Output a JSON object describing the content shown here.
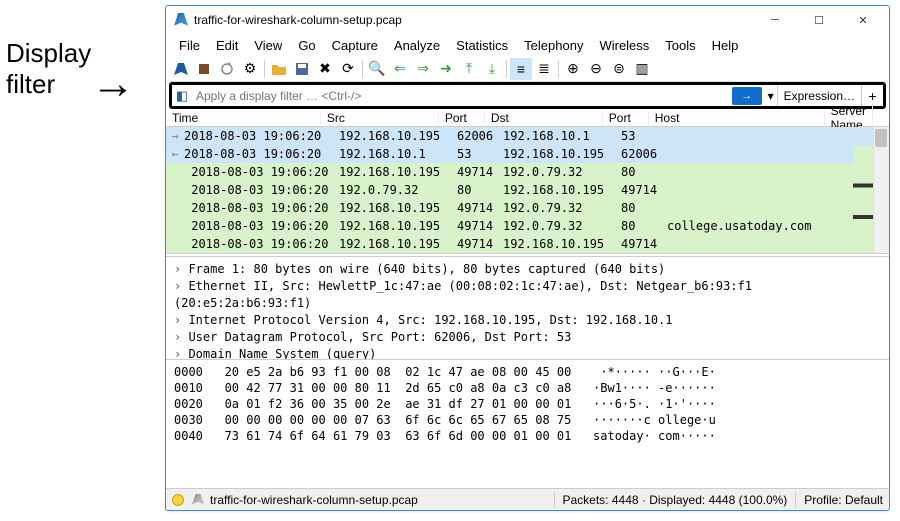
{
  "annotation": {
    "line1": "Display",
    "line2": "filter"
  },
  "window": {
    "title": "traffic-for-wireshark-column-setup.pcap"
  },
  "menu": [
    "File",
    "Edit",
    "View",
    "Go",
    "Capture",
    "Analyze",
    "Statistics",
    "Telephony",
    "Wireless",
    "Tools",
    "Help"
  ],
  "filter": {
    "placeholder": "Apply a display filter … <Ctrl-/>",
    "expression_label": "Expression…"
  },
  "columns": {
    "time": "Time",
    "src": "Src",
    "port": "Port",
    "dst": "Dst",
    "port2": "Port",
    "host": "Host",
    "sname": "Server Name"
  },
  "rows": [
    {
      "cls": "sel",
      "mark": "→",
      "t": "2018-08-03 19:06:20",
      "s": "192.168.10.195",
      "p1": "62006",
      "d": "192.168.10.1",
      "p2": "53",
      "h": ""
    },
    {
      "cls": "sel",
      "mark": "←",
      "t": "2018-08-03 19:06:20",
      "s": "192.168.10.1",
      "p1": "53",
      "d": "192.168.10.195",
      "p2": "62006",
      "h": ""
    },
    {
      "cls": "http",
      "mark": "",
      "t": " 2018-08-03 19:06:20",
      "s": "192.168.10.195",
      "p1": "49714",
      "d": "192.0.79.32",
      "p2": "80",
      "h": ""
    },
    {
      "cls": "http",
      "mark": "",
      "t": " 2018-08-03 19:06:20",
      "s": "192.0.79.32",
      "p1": "80",
      "d": "192.168.10.195",
      "p2": "49714",
      "h": ""
    },
    {
      "cls": "http",
      "mark": "",
      "t": " 2018-08-03 19:06:20",
      "s": "192.168.10.195",
      "p1": "49714",
      "d": "192.0.79.32",
      "p2": "80",
      "h": ""
    },
    {
      "cls": "http",
      "mark": "",
      "t": " 2018-08-03 19:06:20",
      "s": "192.168.10.195",
      "p1": "49714",
      "d": "192.0.79.32",
      "p2": "80",
      "h": "college.usatoday.com"
    },
    {
      "cls": "http",
      "mark": "",
      "t": " 2018-08-03 19:06:20",
      "s": "192.168.10.195",
      "p1": "49714",
      "d": "192.168.10.195",
      "p2": "49714",
      "h": ""
    }
  ],
  "details": [
    "Frame 1: 80 bytes on wire (640 bits), 80 bytes captured (640 bits)",
    "Ethernet II, Src: HewlettP_1c:47:ae (00:08:02:1c:47:ae), Dst: Netgear_b6:93:f1 (20:e5:2a:b6:93:f1)",
    "Internet Protocol Version 4, Src: 192.168.10.195, Dst: 192.168.10.1",
    "User Datagram Protocol, Src Port: 62006, Dst Port: 53",
    "Domain Name System (query)"
  ],
  "hex": [
    "0000   20 e5 2a b6 93 f1 00 08  02 1c 47 ae 08 00 45 00    ·*····· ··G···E·",
    "0010   00 42 77 31 00 00 80 11  2d 65 c0 a8 0a c3 c0 a8   ·Bw1···· -e······",
    "0020   0a 01 f2 36 00 35 00 2e  ae 31 df 27 01 00 00 01   ···6·5·. ·1·'····",
    "0030   00 00 00 00 00 00 07 63  6f 6c 6c 65 67 65 08 75   ·······c ollege·u",
    "0040   73 61 74 6f 64 61 79 03  63 6f 6d 00 00 01 00 01   satoday· com·····"
  ],
  "status": {
    "file": "traffic-for-wireshark-column-setup.pcap",
    "packets": "Packets: 4448 · Displayed: 4448 (100.0%)",
    "profile": "Profile: Default"
  }
}
